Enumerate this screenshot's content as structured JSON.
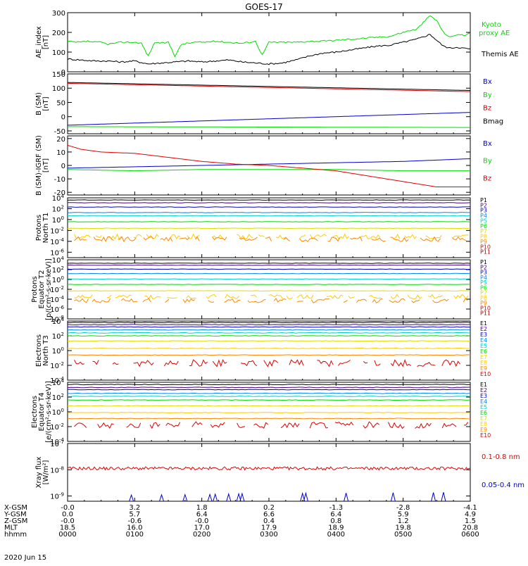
{
  "title": "GOES-17",
  "date_label": "2020 Jun 15",
  "colors": {
    "black": "#000000",
    "red": "#e00000",
    "green": "#00dd00",
    "blue": "#0000cc"
  },
  "chart_data": [
    {
      "type": "line",
      "ylabel": [
        "AE_index",
        "[nT]"
      ],
      "yticks": [
        "300",
        "200",
        "100",
        "0"
      ],
      "ylim": [
        0,
        300
      ],
      "scale": "linear",
      "legend": [
        {
          "label": "Kyoto proxy AE",
          "color": "#00dd00"
        },
        {
          "label": "Themis AE",
          "color": "#000000"
        }
      ],
      "x": [
        "0000",
        "0100",
        "0200",
        "0300",
        "0400",
        "0500",
        "0600"
      ],
      "series": [
        {
          "name": "Kyoto proxy AE",
          "color": "#00dd00",
          "x": [
            0,
            0.1,
            0.2,
            0.3,
            0.4,
            0.5,
            0.6,
            0.7,
            0.8,
            0.9,
            1.0,
            1.1,
            1.2,
            1.3,
            1.4,
            1.5,
            1.6,
            1.7,
            1.8,
            1.9,
            2.0,
            2.2,
            2.4,
            2.6,
            2.8,
            2.9,
            3.0,
            3.1,
            3.2,
            3.4,
            3.6,
            3.8,
            4.0,
            4.2,
            4.4,
            4.6,
            4.8,
            5.0,
            5.1,
            5.2,
            5.3,
            5.4,
            5.5,
            5.6,
            5.7,
            5.8,
            5.9,
            6.0
          ],
          "values": [
            155,
            150,
            150,
            155,
            150,
            150,
            140,
            145,
            150,
            150,
            150,
            145,
            80,
            150,
            145,
            150,
            80,
            140,
            145,
            150,
            150,
            155,
            150,
            145,
            155,
            85,
            150,
            150,
            150,
            150,
            155,
            155,
            160,
            165,
            170,
            175,
            180,
            200,
            210,
            215,
            250,
            285,
            260,
            200,
            175,
            190,
            185,
            195
          ]
        },
        {
          "name": "Themis AE",
          "color": "#000000",
          "x": [
            0,
            0.2,
            0.4,
            0.6,
            0.8,
            1.0,
            1.2,
            1.4,
            1.6,
            1.8,
            2.0,
            2.2,
            2.4,
            2.6,
            2.8,
            3.0,
            3.2,
            3.4,
            3.6,
            3.8,
            4.0,
            4.2,
            4.4,
            4.6,
            4.8,
            5.0,
            5.2,
            5.4,
            5.5,
            5.6,
            5.7,
            5.8,
            5.9,
            6.0
          ],
          "values": [
            65,
            60,
            55,
            55,
            50,
            55,
            40,
            45,
            50,
            55,
            50,
            55,
            60,
            50,
            45,
            40,
            45,
            60,
            80,
            95,
            100,
            110,
            120,
            130,
            135,
            150,
            165,
            190,
            160,
            130,
            120,
            125,
            120,
            115
          ]
        }
      ]
    },
    {
      "type": "line",
      "ylabel": [
        "B (SM)",
        "[nT]"
      ],
      "yticks": [
        "150",
        "100",
        "50",
        "0",
        "-50"
      ],
      "ylim": [
        -60,
        150
      ],
      "scale": "linear",
      "legend": [
        {
          "label": "Bx",
          "color": "#0000cc"
        },
        {
          "label": "By",
          "color": "#00dd00"
        },
        {
          "label": "Bz",
          "color": "#e00000"
        },
        {
          "label": "Bmag",
          "color": "#000000"
        }
      ],
      "series": [
        {
          "name": "Bx",
          "color": "#0000cc",
          "x": [
            0,
            6
          ],
          "values": [
            -30,
            15
          ]
        },
        {
          "name": "By",
          "color": "#00dd00",
          "x": [
            0,
            6
          ],
          "values": [
            -35,
            -38
          ]
        },
        {
          "name": "Bz",
          "color": "#e00000",
          "x": [
            0,
            6
          ],
          "values": [
            117,
            88
          ]
        },
        {
          "name": "Bmag",
          "color": "#000000",
          "x": [
            0,
            6
          ],
          "values": [
            120,
            92
          ]
        }
      ]
    },
    {
      "type": "line",
      "ylabel": [
        "B (SM)-IGRF (SM)",
        "[nT]"
      ],
      "yticks": [
        "20",
        "10",
        "0",
        "-10",
        "-20"
      ],
      "ylim": [
        -22,
        22
      ],
      "scale": "linear",
      "legend": [
        {
          "label": "Bx",
          "color": "#0000cc"
        },
        {
          "label": "By",
          "color": "#00dd00"
        },
        {
          "label": "Bz",
          "color": "#e00000"
        }
      ],
      "series": [
        {
          "name": "Bx",
          "color": "#0000cc",
          "x": [
            0,
            1,
            2,
            3,
            4,
            5,
            6
          ],
          "values": [
            -2,
            -1,
            0,
            1,
            2,
            3,
            5
          ]
        },
        {
          "name": "By",
          "color": "#00dd00",
          "x": [
            0,
            1,
            2,
            3,
            4,
            5,
            6
          ],
          "values": [
            -3,
            -4,
            -3,
            -3,
            -3,
            -4,
            -4
          ]
        },
        {
          "name": "Bz",
          "color": "#e00000",
          "x": [
            0,
            0.2,
            0.5,
            1,
            1.5,
            2,
            2.5,
            3,
            3.5,
            4,
            4.5,
            5,
            5.5,
            6
          ],
          "values": [
            15,
            12,
            10,
            9,
            6,
            3,
            1,
            0,
            -2,
            -4,
            -8,
            -12,
            -16,
            -16
          ]
        }
      ]
    },
    {
      "type": "log-channels",
      "ylabel": [
        "Protons",
        "North T1"
      ],
      "yticks": [
        "10^4",
        "10^2",
        "10^0",
        "10^-2",
        "10^-4",
        "10^-6"
      ],
      "decades": [
        4,
        -7
      ],
      "channels": [
        "P1",
        "P2",
        "P3",
        "P4",
        "P5",
        "P6",
        "P7",
        "P8",
        "P9",
        "P10",
        "P11"
      ],
      "channel_colors": [
        "#000000",
        "#4b0082",
        "#0000cc",
        "#0088ff",
        "#00cccc",
        "#00dd00",
        "#dddd00",
        "#ffcc00",
        "#ff8800",
        "#e00000",
        "#aa0000"
      ],
      "levels": [
        3.6,
        3.1,
        2.3,
        1.3,
        0.7,
        -0.4,
        -1.6,
        -3.1,
        -3.6,
        null,
        null
      ],
      "noisy": [
        false,
        false,
        false,
        false,
        false,
        false,
        false,
        true,
        true,
        false,
        false
      ]
    },
    {
      "type": "log-channels",
      "ylabel": [
        "Protons",
        "Equator T2",
        "[p/(cm²-s-sr-keV)]"
      ],
      "yticks": [
        "10^4",
        "10^2",
        "10^0",
        "10^-2",
        "10^-4",
        "10^-6",
        "10^-8"
      ],
      "decades": [
        4,
        -8
      ],
      "channels": [
        "P1",
        "P2",
        "P3",
        "P4",
        "P5",
        "P6",
        "P7",
        "P8",
        "P9",
        "P10",
        "P11"
      ],
      "channel_colors": [
        "#000000",
        "#4b0082",
        "#0000cc",
        "#0088ff",
        "#00cccc",
        "#00dd00",
        "#dddd00",
        "#ffcc00",
        "#ff8800",
        "#e00000",
        "#aa0000"
      ],
      "levels": [
        3.3,
        2.9,
        2.1,
        1.2,
        0.1,
        -1.0,
        -2.3,
        -3.5,
        -4.3,
        null,
        null
      ],
      "noisy": [
        false,
        false,
        false,
        false,
        false,
        false,
        false,
        true,
        true,
        false,
        false
      ]
    },
    {
      "type": "log-channels",
      "ylabel": [
        "Electrons",
        "North T3"
      ],
      "yticks": [
        "10^4",
        "10^2",
        "10^0",
        "10^-2",
        "10^-4"
      ],
      "decades": [
        4,
        -4
      ],
      "channels": [
        "E1",
        "E2",
        "E3",
        "E4",
        "E5",
        "E6",
        "E7",
        "E8",
        "E9",
        "E10"
      ],
      "channel_colors": [
        "#000000",
        "#4b0082",
        "#0000cc",
        "#0088ff",
        "#00cccc",
        "#00dd00",
        "#dddd00",
        "#ffcc00",
        "#ff8800",
        "#e00000"
      ],
      "levels": [
        3.8,
        3.5,
        3.2,
        2.8,
        2.4,
        2.0,
        1.3,
        0.3,
        -0.6,
        -1.7
      ],
      "noisy": [
        false,
        false,
        false,
        false,
        false,
        false,
        false,
        false,
        false,
        true
      ]
    },
    {
      "type": "log-channels",
      "ylabel": [
        "Electrons",
        "Equator T4",
        "[e/(cm²-s-sr-keV)]"
      ],
      "yticks": [
        "10^4",
        "10^2",
        "10^0",
        "10^-2",
        "10^-4"
      ],
      "decades": [
        4,
        -4
      ],
      "channels": [
        "E1",
        "E2",
        "E3",
        "E4",
        "E5",
        "E6",
        "E7",
        "E8",
        "E9",
        "E10"
      ],
      "channel_colors": [
        "#000000",
        "#4b0082",
        "#0000cc",
        "#0088ff",
        "#00cccc",
        "#00dd00",
        "#dddd00",
        "#ffcc00",
        "#ff8800",
        "#e00000"
      ],
      "levels": [
        3.7,
        3.3,
        3.0,
        2.5,
        2.1,
        1.6,
        0.8,
        -0.1,
        -0.9,
        -1.8
      ],
      "noisy": [
        false,
        false,
        false,
        false,
        false,
        false,
        false,
        false,
        false,
        true
      ]
    },
    {
      "type": "log-line",
      "ylabel": [
        "Xray flux",
        "[W/m²]"
      ],
      "yticks": [
        "10^-7",
        "10^-8",
        "10^-9"
      ],
      "decades": [
        -7,
        -9.2
      ],
      "legend": [
        {
          "label": "0.1-0.8 nm",
          "color": "#e00000"
        },
        {
          "label": "0.05-0.4 nm",
          "color": "#0000cc"
        }
      ],
      "series": [
        {
          "name": "0.1-0.8 nm",
          "color": "#e00000",
          "level": -7.95
        },
        {
          "name": "0.05-0.4 nm",
          "color": "#0000cc",
          "level": -9.3,
          "spikes_hours": [
            0.95,
            1.4,
            1.75,
            2.12,
            2.2,
            2.4,
            2.55,
            2.6,
            3.5,
            3.55,
            4.15,
            4.85,
            5.45,
            5.6
          ]
        }
      ]
    }
  ],
  "axis_rows": [
    {
      "label": "X-GSM",
      "values": [
        "-0.0",
        "3.2",
        "1.8",
        "0.2",
        "-1.3",
        "-2.8",
        "-4.1"
      ]
    },
    {
      "label": "Y-GSM",
      "values": [
        "0.0",
        "5.7",
        "6.4",
        "6.6",
        "6.4",
        "5.9",
        "4.9"
      ]
    },
    {
      "label": "Z-GSM",
      "values": [
        "-0.0",
        "-0.6",
        "-0.0",
        "0.4",
        "0.8",
        "1.2",
        "1.5"
      ]
    },
    {
      "label": "MLT",
      "values": [
        "18.5",
        "16.0",
        "17.0",
        "17.9",
        "18.9",
        "19.8",
        "20.8"
      ]
    },
    {
      "label": "hhmm",
      "values": [
        "0000",
        "0100",
        "0200",
        "0300",
        "0400",
        "0500",
        "0600"
      ]
    }
  ]
}
